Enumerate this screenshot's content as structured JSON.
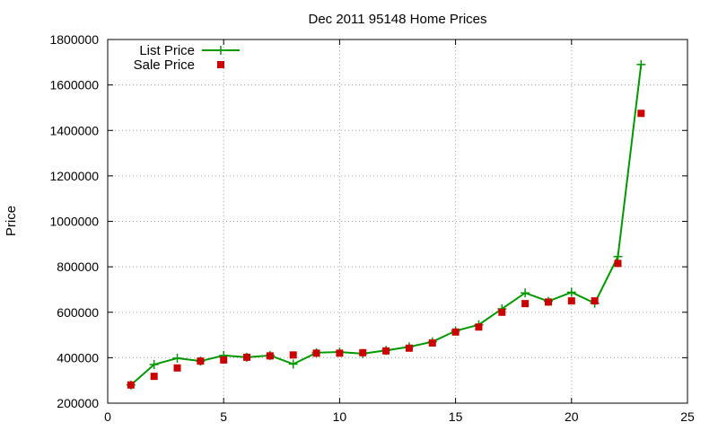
{
  "chart_data": {
    "type": "line",
    "title": "Dec 2011 95148 Home Prices",
    "xlabel": "",
    "ylabel": "Price",
    "xlim": [
      0,
      25
    ],
    "ylim": [
      200000,
      1800000
    ],
    "x_ticks": [
      0,
      5,
      10,
      15,
      20,
      25
    ],
    "y_ticks": [
      200000,
      400000,
      600000,
      800000,
      1000000,
      1200000,
      1400000,
      1600000,
      1800000
    ],
    "grid": true,
    "legend_position": "top-left",
    "series": [
      {
        "name": "List Price",
        "style": "lines+points",
        "marker": "plus",
        "color": "#009900",
        "x": [
          1,
          2,
          3,
          4,
          5,
          6,
          7,
          8,
          9,
          10,
          11,
          12,
          13,
          14,
          15,
          16,
          17,
          18,
          19,
          20,
          21,
          22,
          23
        ],
        "y": [
          280000,
          370000,
          398000,
          385000,
          410000,
          402000,
          410000,
          372000,
          422000,
          425000,
          418000,
          432000,
          448000,
          470000,
          518000,
          545000,
          615000,
          685000,
          648000,
          688000,
          640000,
          845000,
          1690000
        ]
      },
      {
        "name": "Sale Price",
        "style": "points",
        "marker": "square",
        "color": "#cc0000",
        "x": [
          1,
          2,
          3,
          4,
          5,
          6,
          7,
          8,
          9,
          10,
          11,
          12,
          13,
          14,
          15,
          16,
          17,
          18,
          19,
          20,
          21,
          22,
          23
        ],
        "y": [
          280000,
          318000,
          355000,
          385000,
          390000,
          402000,
          408000,
          412000,
          420000,
          420000,
          422000,
          430000,
          442000,
          465000,
          513000,
          535000,
          600000,
          638000,
          645000,
          650000,
          650000,
          815000,
          1475000
        ]
      }
    ]
  }
}
